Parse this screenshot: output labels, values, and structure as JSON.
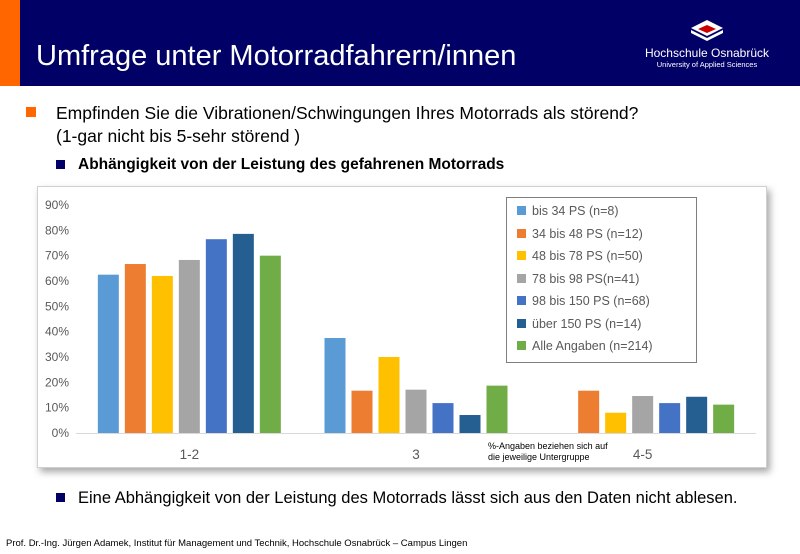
{
  "header": {
    "title": "Umfrage unter Motorradfahrern/innen",
    "logo_name": "Hochschule Osnabrück",
    "logo_sub": "University of Applied Sciences"
  },
  "question": {
    "line1": "Empfinden Sie die Vibrationen/Schwingungen Ihres Motorrads als störend?",
    "line2": "(1-gar nicht bis 5-sehr störend )"
  },
  "subheading": "Abhängigkeit von der Leistung des gefahrenen Motorrads",
  "conclusion": "Eine Abhängigkeit von der Leistung des Motorrads lässt sich aus den Daten nicht ablesen.",
  "footer": "Prof. Dr.-Ing. Jürgen Adamek,  Institut für Management und Technik, Hochschule Osnabrück – Campus Lingen",
  "chart_data": {
    "type": "bar",
    "title": "",
    "xlabel": "",
    "ylabel": "",
    "categories": [
      "1-2",
      "3",
      "4-5"
    ],
    "ylim": [
      0,
      0.9
    ],
    "yticks": [
      "0%",
      "10%",
      "20%",
      "30%",
      "40%",
      "50%",
      "60%",
      "70%",
      "80%",
      "90%"
    ],
    "grid": false,
    "legend_position": "top-right",
    "note_line1": "%-Angaben beziehen sich auf",
    "note_line2": "die jeweilige Untergruppe",
    "series": [
      {
        "name": "bis 34 PS (n=8)",
        "color": "#5b9bd5",
        "values": [
          0.625,
          0.375,
          0.0
        ]
      },
      {
        "name": "34 bis 48 PS (n=12)",
        "color": "#ed7d31",
        "values": [
          0.667,
          0.167,
          0.167
        ]
      },
      {
        "name": "48 bis 78 PS (n=50)",
        "color": "#ffc000",
        "values": [
          0.62,
          0.3,
          0.08
        ]
      },
      {
        "name": "78 bis 98 PS(n=41)",
        "color": "#a5a5a5",
        "values": [
          0.683,
          0.171,
          0.146
        ]
      },
      {
        "name": "98 bis 150 PS (n=68)",
        "color": "#4472c4",
        "values": [
          0.765,
          0.118,
          0.118
        ]
      },
      {
        "name": "über 150 PS (n=14)",
        "color": "#255e91",
        "values": [
          0.786,
          0.071,
          0.143
        ]
      },
      {
        "name": "Alle Angaben (n=214)",
        "color": "#70ad47",
        "values": [
          0.7,
          0.187,
          0.112
        ]
      }
    ]
  }
}
